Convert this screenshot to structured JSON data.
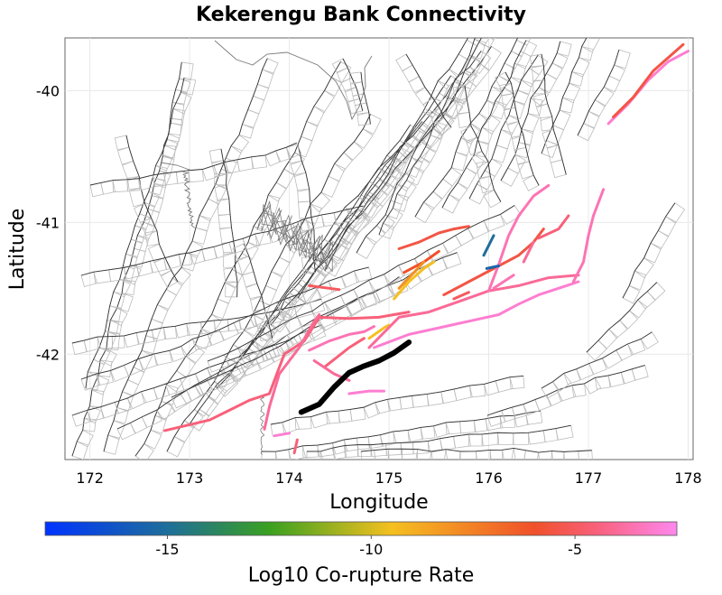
{
  "title": "Kekerengu Bank Connectivity",
  "x_axis": {
    "label": "Longitude",
    "ticks": [
      {
        "value": 172,
        "label": "172"
      },
      {
        "value": 173,
        "label": "173"
      },
      {
        "value": 174,
        "label": "174"
      },
      {
        "value": 175,
        "label": "175"
      },
      {
        "value": 176,
        "label": "176"
      },
      {
        "value": 177,
        "label": "177"
      },
      {
        "value": 178,
        "label": "178"
      }
    ],
    "range": [
      171.75,
      178.05
    ]
  },
  "y_axis": {
    "label": "Latitude",
    "ticks": [
      {
        "value": -40,
        "label": "-40"
      },
      {
        "value": -41,
        "label": "-41"
      },
      {
        "value": -42,
        "label": "-42"
      }
    ],
    "range": [
      -42.8,
      -39.6
    ]
  },
  "colorbar": {
    "label": "Log10 Co-rupture Rate",
    "range": [
      -18,
      -2.5
    ],
    "ticks": [
      {
        "value": -15,
        "label": "-15"
      },
      {
        "value": -10,
        "label": "-10"
      },
      {
        "value": -5,
        "label": "-5"
      }
    ],
    "stops": [
      {
        "value": -18,
        "color": "#0033ff"
      },
      {
        "value": -15,
        "color": "#1e6e9a"
      },
      {
        "value": -12.5,
        "color": "#3aa020"
      },
      {
        "value": -9.5,
        "color": "#f5c020"
      },
      {
        "value": -6,
        "color": "#f0502a"
      },
      {
        "value": -4.5,
        "color": "#f8607a"
      },
      {
        "value": -2.5,
        "color": "#ff88ee"
      }
    ]
  },
  "colors": {
    "background_fault": "#333333",
    "background_fault_box": "#bbbbbb",
    "coastline": "#7a7a7a",
    "target_fault": "#000000",
    "grid": "#e8e8e8"
  },
  "target_fault": {
    "name": "Kekerengu Bank",
    "trace": [
      [
        174.12,
        -42.44
      ],
      [
        174.3,
        -42.38
      ],
      [
        174.45,
        -42.25
      ],
      [
        174.6,
        -42.14
      ],
      [
        174.75,
        -42.09
      ],
      [
        174.9,
        -42.05
      ],
      [
        175.05,
        -41.99
      ],
      [
        175.2,
        -41.91
      ]
    ]
  },
  "connected_faults": [
    {
      "rate": -4.5,
      "trace": [
        [
          172.75,
          -42.58
        ],
        [
          173.2,
          -42.5
        ],
        [
          173.6,
          -42.35
        ],
        [
          173.8,
          -42.3
        ],
        [
          173.95,
          -42.0
        ],
        [
          174.15,
          -41.9
        ],
        [
          174.3,
          -41.72
        ],
        [
          174.6,
          -41.73
        ],
        [
          174.9,
          -41.72
        ],
        [
          175.2,
          -41.68
        ]
      ]
    },
    {
      "rate": -4.0,
      "trace": [
        [
          173.75,
          -42.57
        ],
        [
          173.8,
          -42.4
        ],
        [
          173.9,
          -42.15
        ],
        [
          174.1,
          -41.95
        ],
        [
          174.25,
          -41.75
        ],
        [
          174.3,
          -41.7
        ]
      ]
    },
    {
      "rate": -5.0,
      "trace": [
        [
          174.2,
          -41.48
        ],
        [
          174.4,
          -41.5
        ],
        [
          174.5,
          -41.51
        ]
      ]
    },
    {
      "rate": -3.5,
      "trace": [
        [
          174.2,
          -41.97
        ],
        [
          174.4,
          -41.9
        ],
        [
          174.6,
          -41.85
        ],
        [
          174.75,
          -41.83
        ],
        [
          174.85,
          -41.79
        ]
      ]
    },
    {
      "rate": -4.5,
      "trace": [
        [
          174.35,
          -42.1
        ],
        [
          174.6,
          -41.95
        ],
        [
          174.75,
          -41.88
        ]
      ]
    },
    {
      "rate": -4.0,
      "trace": [
        [
          174.25,
          -42.05
        ],
        [
          174.45,
          -42.15
        ],
        [
          174.6,
          -42.2
        ]
      ]
    },
    {
      "rate": -9.5,
      "trace": [
        [
          174.8,
          -41.88
        ],
        [
          174.95,
          -41.8
        ],
        [
          175.0,
          -41.78
        ]
      ]
    },
    {
      "rate": -3.0,
      "trace": [
        [
          173.85,
          -42.62
        ],
        [
          174.0,
          -42.6
        ]
      ]
    },
    {
      "rate": -4.5,
      "trace": [
        [
          174.05,
          -42.75
        ],
        [
          174.08,
          -42.65
        ]
      ]
    },
    {
      "rate": -3.0,
      "trace": [
        [
          174.6,
          -42.3
        ],
        [
          174.8,
          -42.28
        ],
        [
          174.95,
          -42.28
        ]
      ]
    },
    {
      "rate": -3.0,
      "trace": [
        [
          174.85,
          -41.95
        ],
        [
          175.2,
          -41.85
        ],
        [
          175.5,
          -41.8
        ],
        [
          175.8,
          -41.75
        ],
        [
          176.1,
          -41.7
        ],
        [
          176.3,
          -41.62
        ],
        [
          176.5,
          -41.55
        ],
        [
          176.7,
          -41.5
        ],
        [
          176.9,
          -41.45
        ]
      ]
    },
    {
      "rate": -4.0,
      "trace": [
        [
          174.8,
          -41.95
        ],
        [
          175.1,
          -41.72
        ],
        [
          175.4,
          -41.68
        ],
        [
          175.7,
          -41.6
        ],
        [
          176.0,
          -41.52
        ],
        [
          176.3,
          -41.48
        ],
        [
          176.6,
          -41.42
        ],
        [
          176.9,
          -41.4
        ]
      ]
    },
    {
      "rate": -5.5,
      "trace": [
        [
          175.55,
          -41.55
        ],
        [
          175.8,
          -41.45
        ],
        [
          176.1,
          -41.33
        ],
        [
          176.3,
          -41.25
        ],
        [
          176.45,
          -41.15
        ],
        [
          176.55,
          -41.05
        ]
      ]
    },
    {
      "rate": -3.5,
      "trace": [
        [
          176.0,
          -41.52
        ],
        [
          176.1,
          -41.32
        ],
        [
          176.2,
          -41.1
        ],
        [
          176.3,
          -40.95
        ],
        [
          176.45,
          -40.8
        ],
        [
          176.6,
          -40.72
        ]
      ]
    },
    {
      "rate": -3.5,
      "trace": [
        [
          176.85,
          -41.45
        ],
        [
          176.95,
          -41.3
        ],
        [
          177.0,
          -41.1
        ],
        [
          177.05,
          -40.95
        ],
        [
          177.15,
          -40.75
        ]
      ]
    },
    {
      "rate": -3.0,
      "trace": [
        [
          177.2,
          -40.25
        ],
        [
          177.4,
          -40.1
        ],
        [
          177.6,
          -39.92
        ],
        [
          177.8,
          -39.78
        ],
        [
          178.0,
          -39.7
        ]
      ]
    },
    {
      "rate": -5.5,
      "trace": [
        [
          177.25,
          -40.2
        ],
        [
          177.45,
          -40.05
        ],
        [
          177.65,
          -39.85
        ],
        [
          177.8,
          -39.75
        ],
        [
          177.95,
          -39.65
        ]
      ]
    },
    {
      "rate": -5.5,
      "trace": [
        [
          175.1,
          -41.2
        ],
        [
          175.3,
          -41.15
        ],
        [
          175.5,
          -41.08
        ],
        [
          175.65,
          -41.05
        ],
        [
          175.8,
          -41.03
        ]
      ]
    },
    {
      "rate": -6.0,
      "trace": [
        [
          175.15,
          -41.38
        ],
        [
          175.35,
          -41.3
        ],
        [
          175.5,
          -41.22
        ]
      ]
    },
    {
      "rate": -8.0,
      "trace": [
        [
          175.1,
          -41.5
        ],
        [
          175.25,
          -41.38
        ],
        [
          175.35,
          -41.3
        ]
      ]
    },
    {
      "rate": -9.5,
      "trace": [
        [
          175.05,
          -41.58
        ],
        [
          175.2,
          -41.45
        ],
        [
          175.35,
          -41.35
        ],
        [
          175.45,
          -41.3
        ]
      ]
    },
    {
      "rate": -15.0,
      "trace": [
        [
          175.95,
          -41.25
        ],
        [
          176.05,
          -41.1
        ]
      ]
    },
    {
      "rate": -15.5,
      "trace": [
        [
          175.98,
          -41.35
        ],
        [
          176.1,
          -41.33
        ]
      ]
    },
    {
      "rate": -4.0,
      "trace": [
        [
          176.35,
          -41.3
        ],
        [
          176.45,
          -41.15
        ]
      ]
    },
    {
      "rate": -4.5,
      "trace": [
        [
          176.5,
          -41.12
        ],
        [
          176.7,
          -41.05
        ],
        [
          176.8,
          -40.95
        ]
      ]
    },
    {
      "rate": -5.0,
      "trace": [
        [
          175.65,
          -41.58
        ],
        [
          175.8,
          -41.53
        ]
      ]
    },
    {
      "rate": -3.5,
      "trace": [
        [
          176.05,
          -41.5
        ],
        [
          176.25,
          -41.4
        ]
      ]
    }
  ]
}
